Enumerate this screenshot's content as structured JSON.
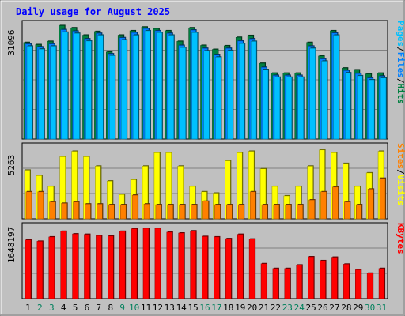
{
  "chart_data": {
    "type": "bar",
    "title": "Daily usage for August 2025",
    "days": [
      "1",
      "2",
      "3",
      "4",
      "5",
      "6",
      "7",
      "8",
      "9",
      "10",
      "11",
      "12",
      "13",
      "14",
      "15",
      "16",
      "17",
      "18",
      "19",
      "20",
      "21",
      "22",
      "23",
      "24",
      "25",
      "26",
      "27",
      "28",
      "29",
      "30",
      "31"
    ],
    "weekend_days": [
      "2",
      "3",
      "9",
      "10",
      "16",
      "17",
      "23",
      "24",
      "30",
      "31"
    ],
    "panels": [
      {
        "id": "hits_panel",
        "ylabel_parts": [
          "Pages",
          "/",
          "Files",
          "/",
          "Hits"
        ],
        "max_label": "31096",
        "ylim": [
          0,
          31096
        ],
        "series": [
          {
            "name": "Hits",
            "color": "#008040",
            "values": [
              26400,
              25800,
              26700,
              31000,
              30400,
              28400,
              29400,
              23800,
              28400,
              29600,
              30600,
              30200,
              29600,
              26700,
              30400,
              25600,
              24500,
              25500,
              27800,
              28300,
              20700,
              18000,
              18000,
              18000,
              26400,
              22700,
              29600,
              19400,
              18900,
              17800,
              18000
            ]
          },
          {
            "name": "Files",
            "color": "#0080FF",
            "values": [
              26000,
              25200,
              26000,
              29900,
              29500,
              27400,
              28900,
              23300,
              27700,
              29100,
              30200,
              29600,
              28900,
              25600,
              29800,
              24800,
              23100,
              24800,
              26800,
              27400,
              19600,
              17400,
              17400,
              17400,
              25400,
              21900,
              29000,
              18700,
              17900,
              16700,
              17200
            ]
          },
          {
            "name": "Pages",
            "color": "#00C0FF",
            "values": [
              25400,
              24600,
              25400,
              29200,
              28900,
              26800,
              28400,
              22800,
              27100,
              28400,
              29600,
              29100,
              28400,
              25000,
              29100,
              24100,
              22400,
              24200,
              26100,
              26700,
              19000,
              16900,
              16900,
              16900,
              24800,
              21300,
              28400,
              18100,
              17300,
              16200,
              16700
            ]
          }
        ]
      },
      {
        "id": "visits_panel",
        "ylabel_parts": [
          "Sites",
          "/",
          "Visits"
        ],
        "max_label": "5263",
        "ylim": [
          0,
          5263
        ],
        "series": [
          {
            "name": "Visits",
            "color": "#FFFF00",
            "values": [
              3600,
              3200,
              2400,
              4600,
              5000,
              4600,
              3900,
              2800,
              1800,
              2900,
              3900,
              4900,
              4900,
              3900,
              2400,
              2000,
              1900,
              4300,
              4900,
              5000,
              3700,
              2400,
              1700,
              2400,
              3900,
              5100,
              4900,
              4100,
              2400,
              3400,
              5000
            ]
          },
          {
            "name": "Sites",
            "color": "#FF8000",
            "values": [
              2000,
              2000,
              1250,
              1150,
              1250,
              1100,
              1100,
              1050,
              1050,
              1750,
              1100,
              1050,
              1050,
              1050,
              1050,
              1300,
              1050,
              1050,
              1050,
              2000,
              1050,
              1050,
              1050,
              1050,
              1400,
              2000,
              2350,
              1250,
              1050,
              2200,
              3000
            ]
          }
        ]
      },
      {
        "id": "kbytes_panel",
        "ylabel_parts": [
          "KBytes"
        ],
        "max_label": "1648197",
        "ylim": [
          0,
          1648197
        ],
        "series": [
          {
            "name": "KBytes",
            "color": "#FF0000",
            "values": [
              1360000,
              1330000,
              1430000,
              1560000,
              1500000,
              1490000,
              1460000,
              1450000,
              1560000,
              1620000,
              1630000,
              1630000,
              1540000,
              1520000,
              1570000,
              1440000,
              1430000,
              1390000,
              1490000,
              1380000,
              810000,
              700000,
              700000,
              780000,
              970000,
              880000,
              960000,
              800000,
              670000,
              590000,
              700000
            ]
          }
        ]
      }
    ],
    "colors": {
      "title": "#0000FF",
      "weekday_label": "#000000",
      "weekend_label": "#00805C",
      "plot_bg": "#C0C0C0",
      "frame_bg": "#C0C0C0"
    }
  }
}
